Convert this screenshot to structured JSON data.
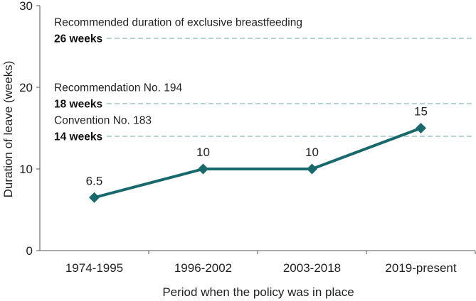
{
  "chart_data": {
    "type": "line",
    "title": "",
    "xlabel": "Period when the policy was in place",
    "ylabel": "Duration of leave (weeks)",
    "ylim": [
      0,
      30
    ],
    "yticks": [
      0,
      10,
      20,
      30
    ],
    "categories": [
      "1974-1995",
      "1996-2002",
      "2003-2018",
      "2019-present"
    ],
    "series": [
      {
        "name": "Duration of leave",
        "values": [
          6.5,
          10,
          10,
          15
        ],
        "data_labels": [
          "6.5",
          "10",
          "10",
          "15"
        ],
        "color": "#17696b"
      }
    ],
    "reference_lines": [
      {
        "value": 26,
        "label": "Recommended duration of exclusive breastfeeding",
        "value_text": "26 weeks"
      },
      {
        "value": 18,
        "label": "Recommendation No. 194",
        "value_text": "18 weeks"
      },
      {
        "value": 14,
        "label": "Convention No. 183",
        "value_text": "14 weeks"
      }
    ],
    "colors": {
      "line": "#17696b",
      "reference": "#9fc5c5",
      "axis": "#555555"
    }
  }
}
